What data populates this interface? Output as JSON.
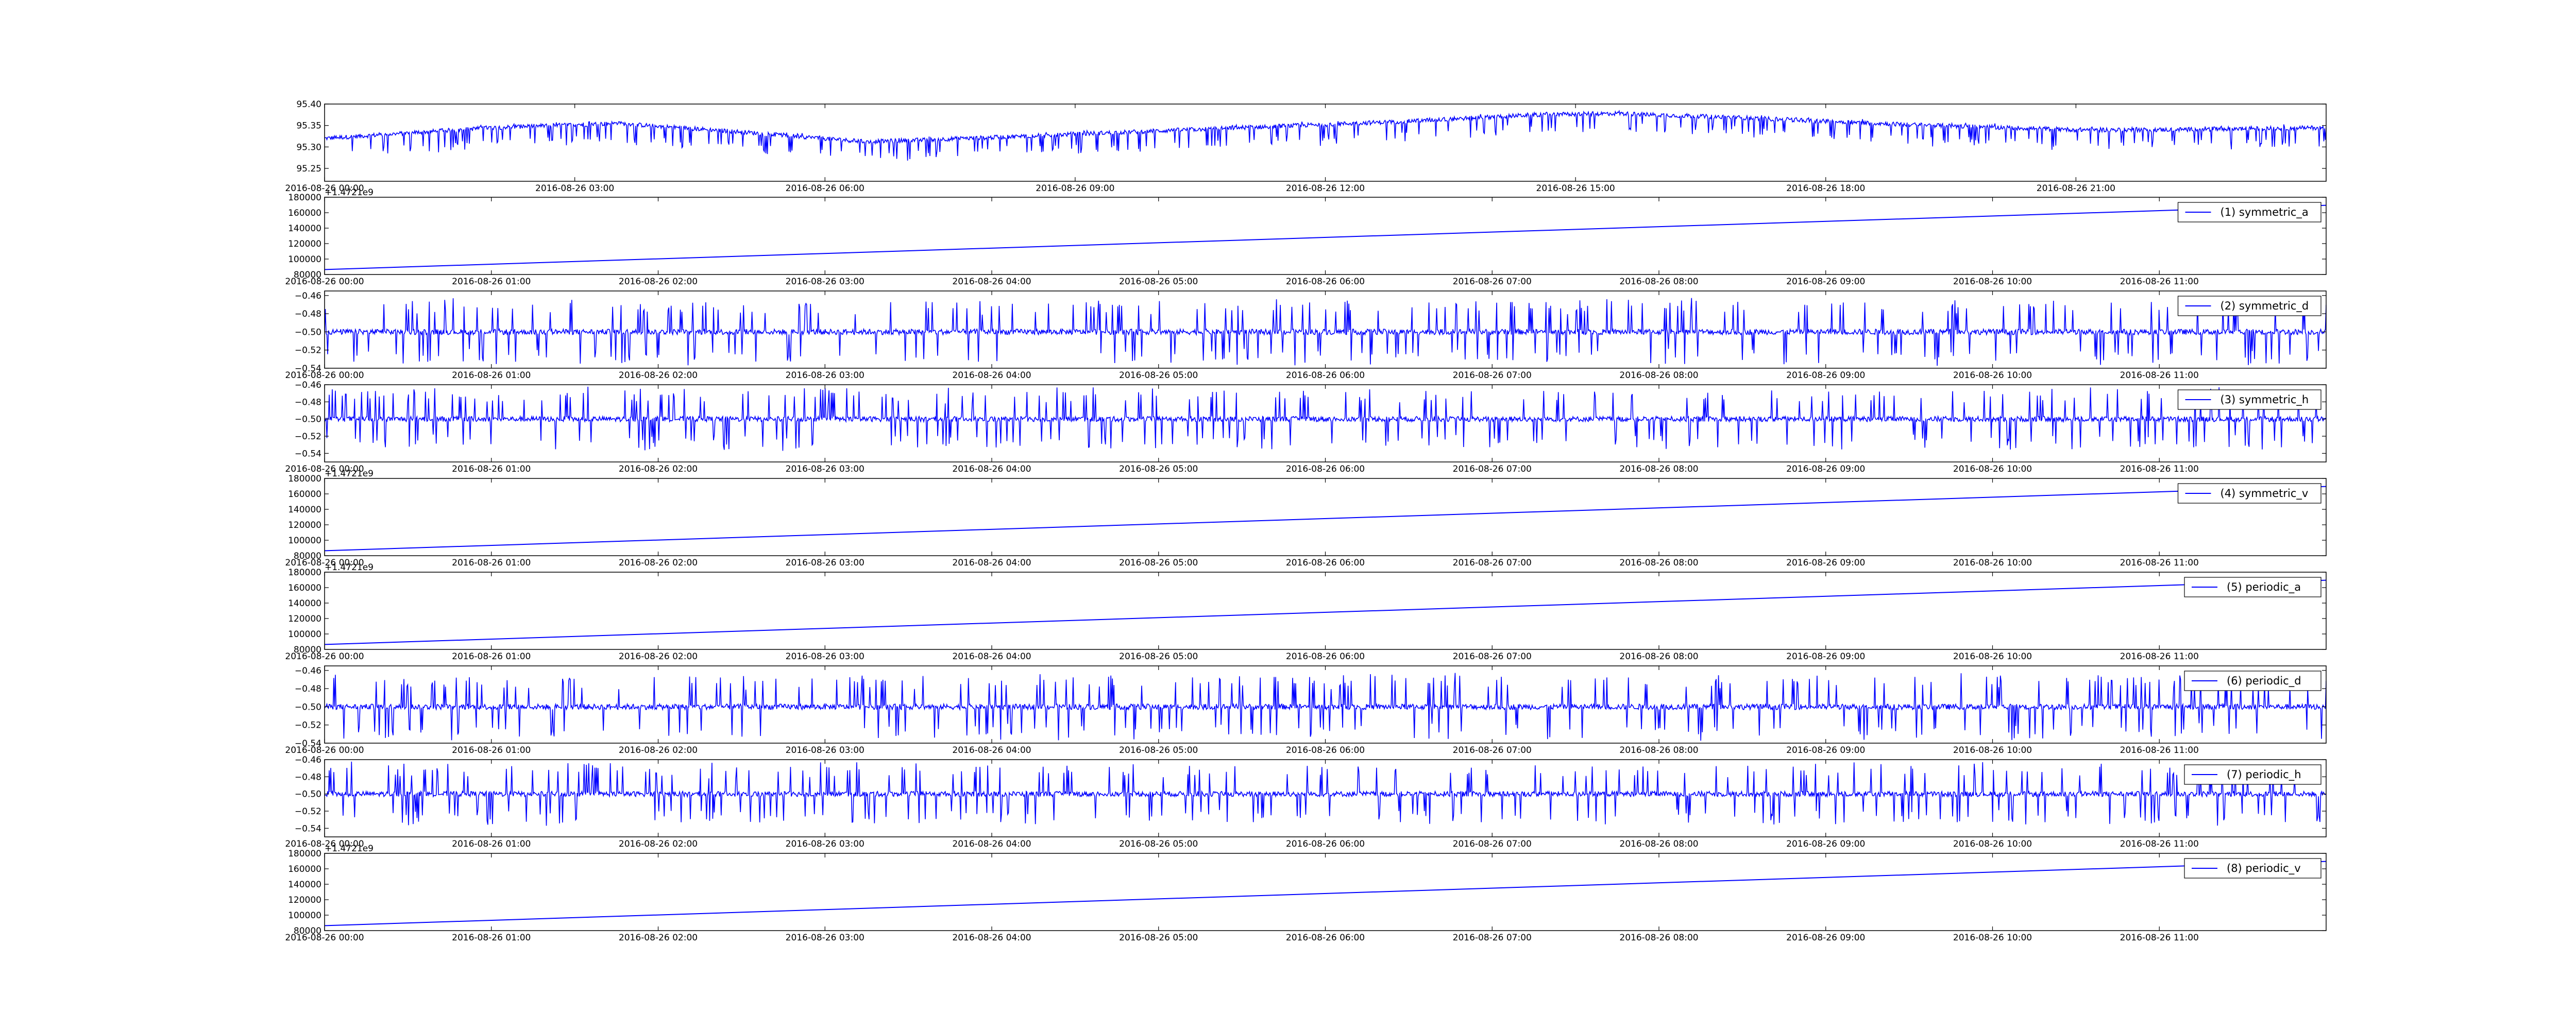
{
  "colors": {
    "line": "#0000ff",
    "axes": "#000000",
    "background": "#ffffff"
  },
  "chart_data": [
    {
      "id": "p0",
      "type": "line",
      "title": "",
      "xlabel": "",
      "ylabel": "",
      "grid": false,
      "legend": null,
      "offset_text": "",
      "xlim": [
        "2016-08-26 00:00",
        "2016-08-27 00:00"
      ],
      "ylim": [
        95.22,
        95.4
      ],
      "yticks": [
        95.25,
        95.3,
        95.35,
        95.4
      ],
      "ytick_labels": [
        "95.25",
        "95.30",
        "95.35",
        "95.40"
      ],
      "xticks": [
        "2016-08-26 00:00",
        "2016-08-26 03:00",
        "2016-08-26 06:00",
        "2016-08-26 09:00",
        "2016-08-26 12:00",
        "2016-08-26 15:00",
        "2016-08-26 18:00",
        "2016-08-26 21:00"
      ],
      "xtick_labels": [
        "2016-08-26 00:00",
        "2016-08-26 03:00",
        "2016-08-26 06:00",
        "2016-08-26 09:00",
        "2016-08-26 12:00",
        "2016-08-26 15:00",
        "2016-08-26 18:00",
        "2016-08-26 21:00"
      ],
      "series": [
        {
          "style": "noisy-spiky",
          "x": [
            "2016-08-26 00:00",
            "2016-08-26 02:00",
            "2016-08-26 03:30",
            "2016-08-26 05:00",
            "2016-08-26 06:30",
            "2016-08-26 08:00",
            "2016-08-26 09:00",
            "2016-08-26 11:00",
            "2016-08-26 13:00",
            "2016-08-26 14:30",
            "2016-08-26 15:30",
            "2016-08-26 17:00",
            "2016-08-26 19:00",
            "2016-08-26 21:00",
            "2016-08-26 22:00",
            "2016-08-27 00:00"
          ],
          "y": [
            95.32,
            95.345,
            95.355,
            95.335,
            95.312,
            95.322,
            95.33,
            95.345,
            95.36,
            95.375,
            95.378,
            95.368,
            95.352,
            95.34,
            95.34,
            95.345
          ],
          "noise": 0.005,
          "spike_depth": 0.045,
          "spike_up": 0.004
        }
      ]
    },
    {
      "id": "p1",
      "type": "line",
      "title": "",
      "xlabel": "",
      "ylabel": "",
      "grid": false,
      "legend": "top-right",
      "offset_text": "+1.4721e9",
      "xlim": [
        "2016-08-26 00:00",
        "2016-08-26 12:00"
      ],
      "ylim": [
        80000,
        180000
      ],
      "yticks": [
        80000,
        100000,
        120000,
        140000,
        160000,
        180000
      ],
      "ytick_labels": [
        "80000",
        "100000",
        "120000",
        "140000",
        "160000",
        "180000"
      ],
      "xticks": [
        "2016-08-26 00:00",
        "2016-08-26 01:00",
        "2016-08-26 02:00",
        "2016-08-26 03:00",
        "2016-08-26 04:00",
        "2016-08-26 05:00",
        "2016-08-26 06:00",
        "2016-08-26 07:00",
        "2016-08-26 08:00",
        "2016-08-26 09:00",
        "2016-08-26 10:00",
        "2016-08-26 11:00"
      ],
      "xtick_labels": [
        "2016-08-26 00:00",
        "2016-08-26 01:00",
        "2016-08-26 02:00",
        "2016-08-26 03:00",
        "2016-08-26 04:00",
        "2016-08-26 05:00",
        "2016-08-26 06:00",
        "2016-08-26 07:00",
        "2016-08-26 08:00",
        "2016-08-26 09:00",
        "2016-08-26 10:00",
        "2016-08-26 11:00"
      ],
      "series": [
        {
          "name": "(1) symmetric_a",
          "style": "linear",
          "x": [
            "2016-08-26 00:00",
            "2016-08-26 12:00"
          ],
          "y": [
            86400,
            169600
          ]
        }
      ]
    },
    {
      "id": "p2",
      "type": "line",
      "title": "",
      "xlabel": "",
      "ylabel": "",
      "grid": false,
      "legend": "top-right",
      "offset_text": "",
      "xlim": [
        "2016-08-26 00:00",
        "2016-08-26 12:00"
      ],
      "ylim": [
        -0.54,
        -0.455
      ],
      "yticks": [
        -0.54,
        -0.52,
        -0.5,
        -0.48,
        -0.46
      ],
      "ytick_labels": [
        "−0.54",
        "−0.52",
        "−0.50",
        "−0.48",
        "−0.46"
      ],
      "xticks": [
        "2016-08-26 00:00",
        "2016-08-26 01:00",
        "2016-08-26 02:00",
        "2016-08-26 03:00",
        "2016-08-26 04:00",
        "2016-08-26 05:00",
        "2016-08-26 06:00",
        "2016-08-26 07:00",
        "2016-08-26 08:00",
        "2016-08-26 09:00",
        "2016-08-26 10:00",
        "2016-08-26 11:00"
      ],
      "xtick_labels": [
        "2016-08-26 00:00",
        "2016-08-26 01:00",
        "2016-08-26 02:00",
        "2016-08-26 03:00",
        "2016-08-26 04:00",
        "2016-08-26 05:00",
        "2016-08-26 06:00",
        "2016-08-26 07:00",
        "2016-08-26 08:00",
        "2016-08-26 09:00",
        "2016-08-26 10:00",
        "2016-08-26 11:00"
      ],
      "series": [
        {
          "name": "(2) symmetric_d",
          "style": "noisy-bidirectional",
          "x": [
            "2016-08-26 00:00",
            "2016-08-26 12:00"
          ],
          "y": [
            -0.5,
            -0.5
          ],
          "noise": 0.003,
          "spike_up": 0.035,
          "spike_down": 0.035
        }
      ]
    },
    {
      "id": "p3",
      "type": "line",
      "title": "",
      "xlabel": "",
      "ylabel": "",
      "grid": false,
      "legend": "top-right",
      "offset_text": "",
      "xlim": [
        "2016-08-26 00:00",
        "2016-08-26 12:00"
      ],
      "ylim": [
        -0.55,
        -0.46
      ],
      "yticks": [
        -0.54,
        -0.52,
        -0.5,
        -0.48,
        -0.46
      ],
      "ytick_labels": [
        "−0.54",
        "−0.52",
        "−0.50",
        "−0.48",
        "−0.46"
      ],
      "xticks": [
        "2016-08-26 00:00",
        "2016-08-26 01:00",
        "2016-08-26 02:00",
        "2016-08-26 03:00",
        "2016-08-26 04:00",
        "2016-08-26 05:00",
        "2016-08-26 06:00",
        "2016-08-26 07:00",
        "2016-08-26 08:00",
        "2016-08-26 09:00",
        "2016-08-26 10:00",
        "2016-08-26 11:00"
      ],
      "xtick_labels": [
        "2016-08-26 00:00",
        "2016-08-26 01:00",
        "2016-08-26 02:00",
        "2016-08-26 03:00",
        "2016-08-26 04:00",
        "2016-08-26 05:00",
        "2016-08-26 06:00",
        "2016-08-26 07:00",
        "2016-08-26 08:00",
        "2016-08-26 09:00",
        "2016-08-26 10:00",
        "2016-08-26 11:00"
      ],
      "series": [
        {
          "name": "(3) symmetric_h",
          "style": "noisy-bidirectional",
          "x": [
            "2016-08-26 00:00",
            "2016-08-26 12:00"
          ],
          "y": [
            -0.5,
            -0.5
          ],
          "noise": 0.003,
          "spike_up": 0.035,
          "spike_down": 0.035
        }
      ]
    },
    {
      "id": "p4",
      "type": "line",
      "title": "",
      "xlabel": "",
      "ylabel": "",
      "grid": false,
      "legend": "top-right",
      "offset_text": "+1.4721e9",
      "xlim": [
        "2016-08-26 00:00",
        "2016-08-26 12:00"
      ],
      "ylim": [
        80000,
        180000
      ],
      "yticks": [
        80000,
        100000,
        120000,
        140000,
        160000,
        180000
      ],
      "ytick_labels": [
        "80000",
        "100000",
        "120000",
        "140000",
        "160000",
        "180000"
      ],
      "xticks": [
        "2016-08-26 00:00",
        "2016-08-26 01:00",
        "2016-08-26 02:00",
        "2016-08-26 03:00",
        "2016-08-26 04:00",
        "2016-08-26 05:00",
        "2016-08-26 06:00",
        "2016-08-26 07:00",
        "2016-08-26 08:00",
        "2016-08-26 09:00",
        "2016-08-26 10:00",
        "2016-08-26 11:00"
      ],
      "xtick_labels": [
        "2016-08-26 00:00",
        "2016-08-26 01:00",
        "2016-08-26 02:00",
        "2016-08-26 03:00",
        "2016-08-26 04:00",
        "2016-08-26 05:00",
        "2016-08-26 06:00",
        "2016-08-26 07:00",
        "2016-08-26 08:00",
        "2016-08-26 09:00",
        "2016-08-26 10:00",
        "2016-08-26 11:00"
      ],
      "series": [
        {
          "name": "(4) symmetric_v",
          "style": "linear",
          "x": [
            "2016-08-26 00:00",
            "2016-08-26 12:00"
          ],
          "y": [
            86400,
            169600
          ]
        }
      ]
    },
    {
      "id": "p5",
      "type": "line",
      "title": "",
      "xlabel": "",
      "ylabel": "",
      "grid": false,
      "legend": "top-right",
      "offset_text": "+1.4721e9",
      "xlim": [
        "2016-08-26 00:00",
        "2016-08-26 12:00"
      ],
      "ylim": [
        80000,
        180000
      ],
      "yticks": [
        80000,
        100000,
        120000,
        140000,
        160000,
        180000
      ],
      "ytick_labels": [
        "80000",
        "100000",
        "120000",
        "140000",
        "160000",
        "180000"
      ],
      "xticks": [
        "2016-08-26 00:00",
        "2016-08-26 01:00",
        "2016-08-26 02:00",
        "2016-08-26 03:00",
        "2016-08-26 04:00",
        "2016-08-26 05:00",
        "2016-08-26 06:00",
        "2016-08-26 07:00",
        "2016-08-26 08:00",
        "2016-08-26 09:00",
        "2016-08-26 10:00",
        "2016-08-26 11:00"
      ],
      "xtick_labels": [
        "2016-08-26 00:00",
        "2016-08-26 01:00",
        "2016-08-26 02:00",
        "2016-08-26 03:00",
        "2016-08-26 04:00",
        "2016-08-26 05:00",
        "2016-08-26 06:00",
        "2016-08-26 07:00",
        "2016-08-26 08:00",
        "2016-08-26 09:00",
        "2016-08-26 10:00",
        "2016-08-26 11:00"
      ],
      "series": [
        {
          "name": "(5) periodic_a",
          "style": "linear",
          "x": [
            "2016-08-26 00:00",
            "2016-08-26 12:00"
          ],
          "y": [
            86400,
            169600
          ]
        }
      ]
    },
    {
      "id": "p6",
      "type": "line",
      "title": "",
      "xlabel": "",
      "ylabel": "",
      "grid": false,
      "legend": "top-right",
      "offset_text": "",
      "xlim": [
        "2016-08-26 00:00",
        "2016-08-26 12:00"
      ],
      "ylim": [
        -0.54,
        -0.455
      ],
      "yticks": [
        -0.54,
        -0.52,
        -0.5,
        -0.48,
        -0.46
      ],
      "ytick_labels": [
        "−0.54",
        "−0.52",
        "−0.50",
        "−0.48",
        "−0.46"
      ],
      "xticks": [
        "2016-08-26 00:00",
        "2016-08-26 01:00",
        "2016-08-26 02:00",
        "2016-08-26 03:00",
        "2016-08-26 04:00",
        "2016-08-26 05:00",
        "2016-08-26 06:00",
        "2016-08-26 07:00",
        "2016-08-26 08:00",
        "2016-08-26 09:00",
        "2016-08-26 10:00",
        "2016-08-26 11:00"
      ],
      "xtick_labels": [
        "2016-08-26 00:00",
        "2016-08-26 01:00",
        "2016-08-26 02:00",
        "2016-08-26 03:00",
        "2016-08-26 04:00",
        "2016-08-26 05:00",
        "2016-08-26 06:00",
        "2016-08-26 07:00",
        "2016-08-26 08:00",
        "2016-08-26 09:00",
        "2016-08-26 10:00",
        "2016-08-26 11:00"
      ],
      "series": [
        {
          "name": "(6) periodic_d",
          "style": "noisy-bidirectional",
          "x": [
            "2016-08-26 00:00",
            "2016-08-26 12:00"
          ],
          "y": [
            -0.5,
            -0.5
          ],
          "noise": 0.003,
          "spike_up": 0.035,
          "spike_down": 0.035
        }
      ]
    },
    {
      "id": "p7",
      "type": "line",
      "title": "",
      "xlabel": "",
      "ylabel": "",
      "grid": false,
      "legend": "top-right",
      "offset_text": "",
      "xlim": [
        "2016-08-26 00:00",
        "2016-08-26 12:00"
      ],
      "ylim": [
        -0.55,
        -0.46
      ],
      "yticks": [
        -0.54,
        -0.52,
        -0.5,
        -0.48,
        -0.46
      ],
      "ytick_labels": [
        "−0.54",
        "−0.52",
        "−0.50",
        "−0.48",
        "−0.46"
      ],
      "xticks": [
        "2016-08-26 00:00",
        "2016-08-26 01:00",
        "2016-08-26 02:00",
        "2016-08-26 03:00",
        "2016-08-26 04:00",
        "2016-08-26 05:00",
        "2016-08-26 06:00",
        "2016-08-26 07:00",
        "2016-08-26 08:00",
        "2016-08-26 09:00",
        "2016-08-26 10:00",
        "2016-08-26 11:00"
      ],
      "xtick_labels": [
        "2016-08-26 00:00",
        "2016-08-26 01:00",
        "2016-08-26 02:00",
        "2016-08-26 03:00",
        "2016-08-26 04:00",
        "2016-08-26 05:00",
        "2016-08-26 06:00",
        "2016-08-26 07:00",
        "2016-08-26 08:00",
        "2016-08-26 09:00",
        "2016-08-26 10:00",
        "2016-08-26 11:00"
      ],
      "series": [
        {
          "name": "(7) periodic_h",
          "style": "noisy-bidirectional",
          "x": [
            "2016-08-26 00:00",
            "2016-08-26 12:00"
          ],
          "y": [
            -0.5,
            -0.5
          ],
          "noise": 0.003,
          "spike_up": 0.035,
          "spike_down": 0.035
        }
      ]
    },
    {
      "id": "p8",
      "type": "line",
      "title": "",
      "xlabel": "",
      "ylabel": "",
      "grid": false,
      "legend": "top-right",
      "offset_text": "+1.4721e9",
      "xlim": [
        "2016-08-26 00:00",
        "2016-08-26 12:00"
      ],
      "ylim": [
        80000,
        180000
      ],
      "yticks": [
        80000,
        100000,
        120000,
        140000,
        160000,
        180000
      ],
      "ytick_labels": [
        "80000",
        "100000",
        "120000",
        "140000",
        "160000",
        "180000"
      ],
      "xticks": [
        "2016-08-26 00:00",
        "2016-08-26 01:00",
        "2016-08-26 02:00",
        "2016-08-26 03:00",
        "2016-08-26 04:00",
        "2016-08-26 05:00",
        "2016-08-26 06:00",
        "2016-08-26 07:00",
        "2016-08-26 08:00",
        "2016-08-26 09:00",
        "2016-08-26 10:00",
        "2016-08-26 11:00"
      ],
      "xtick_labels": [
        "2016-08-26 00:00",
        "2016-08-26 01:00",
        "2016-08-26 02:00",
        "2016-08-26 03:00",
        "2016-08-26 04:00",
        "2016-08-26 05:00",
        "2016-08-26 06:00",
        "2016-08-26 07:00",
        "2016-08-26 08:00",
        "2016-08-26 09:00",
        "2016-08-26 10:00",
        "2016-08-26 11:00"
      ],
      "series": [
        {
          "name": "(8) periodic_v",
          "style": "linear",
          "x": [
            "2016-08-26 00:00",
            "2016-08-26 12:00"
          ],
          "y": [
            86400,
            169600
          ]
        }
      ]
    }
  ]
}
